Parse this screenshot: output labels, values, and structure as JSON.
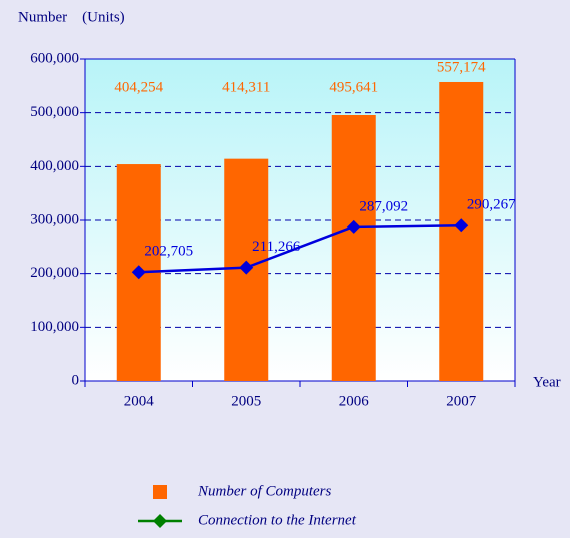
{
  "chart_data": {
    "type": "bar",
    "y_axis_label": "Number　(Units)",
    "x_axis_label": "Year",
    "categories": [
      "2004",
      "2005",
      "2006",
      "2007"
    ],
    "series": [
      {
        "name": "Number of Computers",
        "type": "bar",
        "color": "#ff6600",
        "values": [
          404254,
          414311,
          495641,
          557174
        ],
        "value_labels": [
          "404,254",
          "414,311",
          "495,641",
          "557,174"
        ]
      },
      {
        "name": "Connection to the Internet",
        "type": "line",
        "color": "#0000dd",
        "legend_color": "#008000",
        "values": [
          202705,
          211266,
          287092,
          290267
        ],
        "value_labels": [
          "202,705",
          "211,266",
          "287,092",
          "290,267"
        ]
      }
    ],
    "ylim": [
      0,
      600000
    ],
    "yticks": [
      {
        "value": 0,
        "label": "0"
      },
      {
        "value": 100000,
        "label": "100,000"
      },
      {
        "value": 200000,
        "label": "200,000"
      },
      {
        "value": 300000,
        "label": "300,000"
      },
      {
        "value": 400000,
        "label": "400,000"
      },
      {
        "value": 500000,
        "label": "500,000"
      },
      {
        "value": 600000,
        "label": "600,000"
      }
    ],
    "grid": true
  }
}
